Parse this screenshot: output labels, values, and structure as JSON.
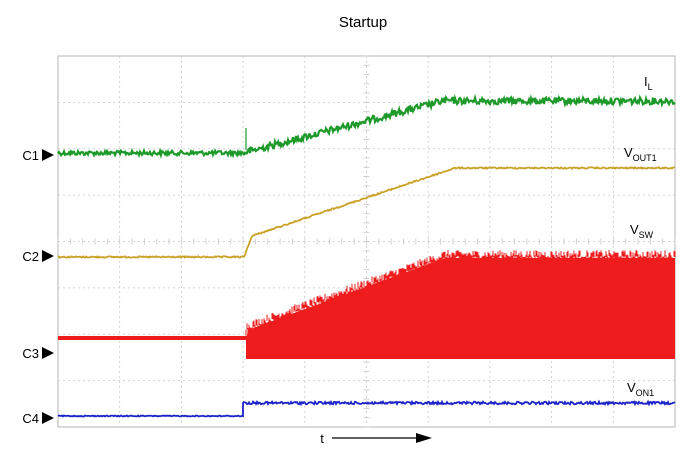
{
  "chart_data": {
    "type": "line",
    "title": "Startup",
    "xlabel": "t",
    "channels": [
      {
        "id": "C1",
        "label": "C1",
        "color": "#1e9a2a"
      },
      {
        "id": "C2",
        "label": "C2",
        "color": "#c9a227"
      },
      {
        "id": "C3",
        "label": "C3",
        "color": "#ee1c1c"
      },
      {
        "id": "C4",
        "label": "C4",
        "color": "#1c23c8"
      }
    ],
    "series": [
      {
        "name": "I_L",
        "name_main": "I",
        "name_sub": "L",
        "channel": "C1",
        "color": "#1e9a2a"
      },
      {
        "name": "V_OUT1",
        "name_main": "V",
        "name_sub": "OUT1",
        "channel": "C2",
        "color": "#c9a227"
      },
      {
        "name": "V_SW",
        "name_main": "V",
        "name_sub": "SW",
        "channel": "C3",
        "color": "#ee1c1c"
      },
      {
        "name": "V_ON1",
        "name_main": "V",
        "name_sub": "ON1",
        "channel": "C4",
        "color": "#1c23c8"
      }
    ],
    "grid": true,
    "grid_divisions": {
      "x": 10,
      "y": 8
    },
    "legend": "none"
  }
}
